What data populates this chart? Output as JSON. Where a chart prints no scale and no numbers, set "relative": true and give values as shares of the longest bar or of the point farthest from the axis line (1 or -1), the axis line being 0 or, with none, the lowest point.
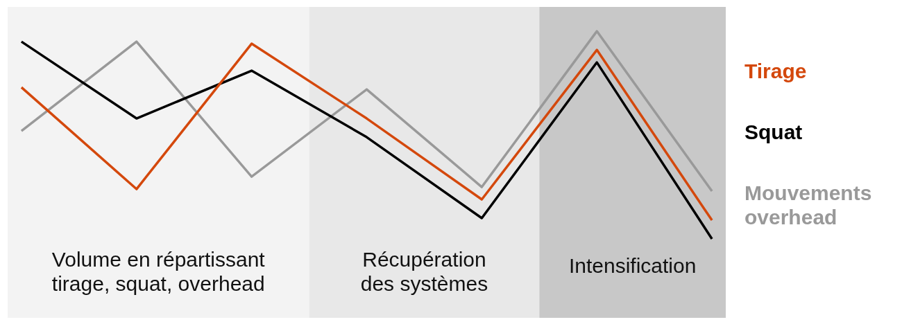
{
  "chart_data": {
    "type": "line",
    "relative": true,
    "categories": [
      null,
      null,
      null,
      null,
      null,
      null,
      null
    ],
    "series": [
      {
        "name": "Tirage",
        "color": "#d4480c",
        "values": [
          0.73,
          0.24,
          0.94,
          0.58,
          0.19,
          0.91,
          0.09
        ]
      },
      {
        "name": "Squat",
        "color": "#000000",
        "values": [
          0.95,
          0.58,
          0.81,
          0.49,
          0.1,
          0.85,
          0
        ]
      },
      {
        "name": "Mouvements overhead",
        "color": "#999999",
        "values": [
          0.52,
          0.95,
          0.3,
          0.72,
          0.25,
          1,
          0.23
        ]
      }
    ],
    "annotations": [
      "Volume en répartissant tirage, squat, overhead",
      "Récupération des systèmes",
      "Intensification"
    ],
    "legend": "right"
  }
}
